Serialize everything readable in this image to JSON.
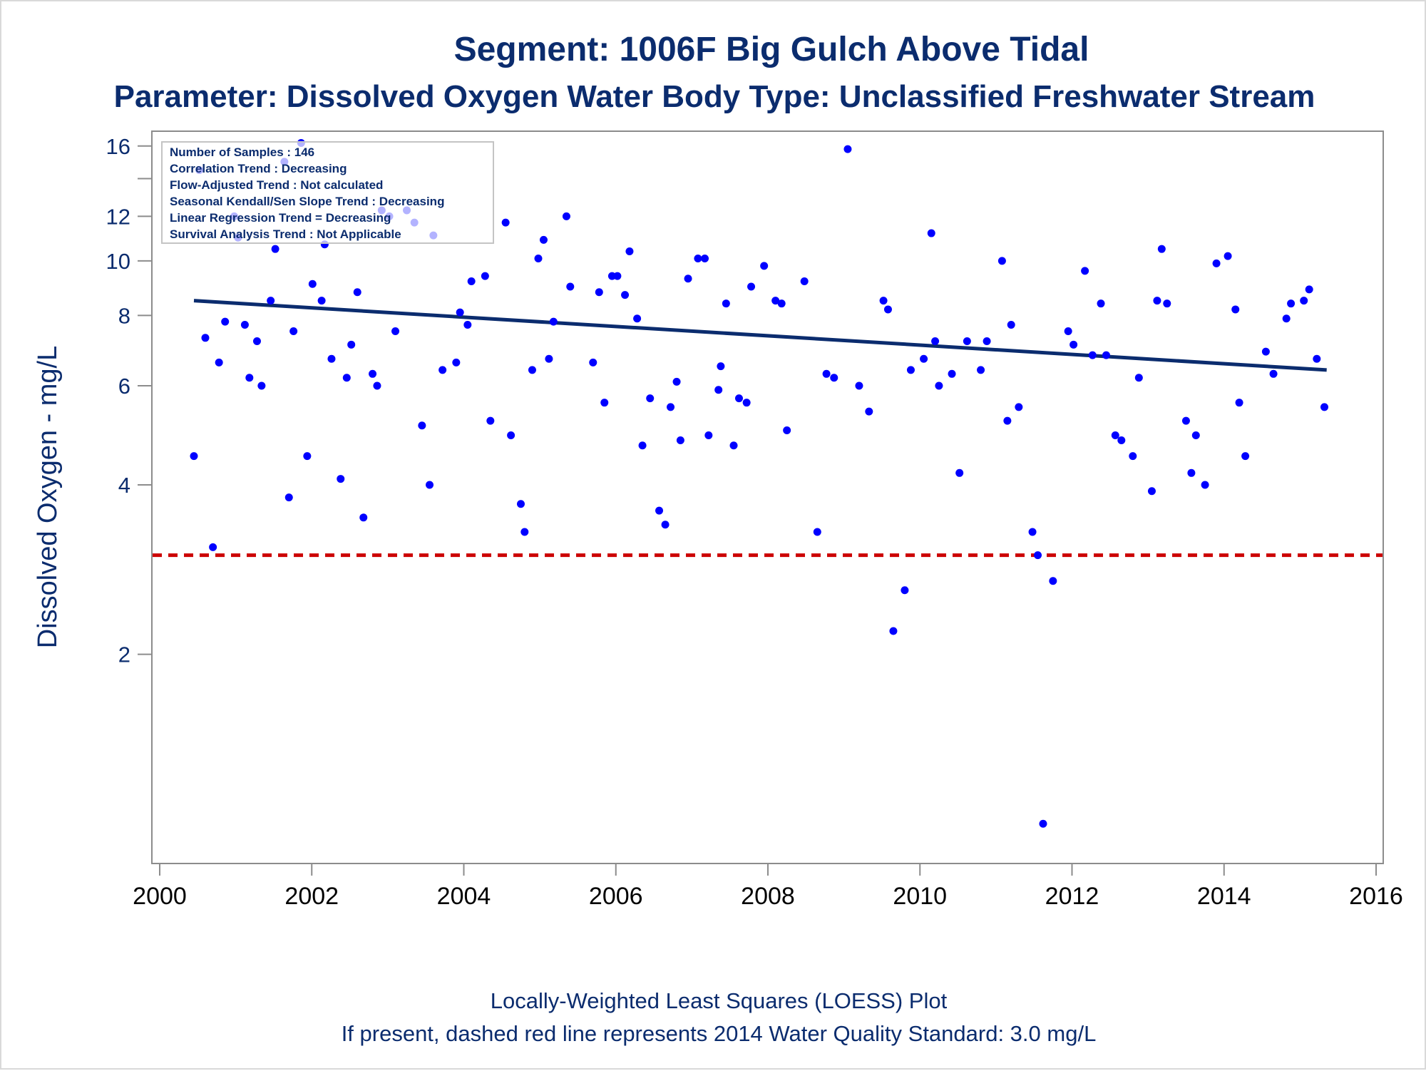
{
  "title": "Segment: 1006F  Big Gulch Above Tidal",
  "subtitle": "Parameter: Dissolved Oxygen   Water Body Type: Unclassified Freshwater Stream",
  "footnotes": [
    "Locally-Weighted Least Squares (LOESS) Plot",
    "If present, dashed red line represents 2014 Water Quality Standard: 3.0 mg/L"
  ],
  "stats_box": [
    "Number of Samples : 146",
    "Correlation Trend : Decreasing",
    "Flow-Adjusted Trend : Not calculated",
    "Seasonal Kendall/Sen Slope Trend : Decreasing",
    "Linear Regression Trend = Decreasing",
    "Survival Analysis Trend : Not Applicable"
  ],
  "colors": {
    "title": "#0b2c6e",
    "points": "#0000ff",
    "trend_line": "#0b2c6e",
    "standard_line": "#cc0000",
    "axis": "#8c8c8c"
  },
  "chart_data": {
    "type": "scatter",
    "title": "Segment: 1006F  Big Gulch Above Tidal",
    "subtitle": "Parameter: Dissolved Oxygen   Water Body Type: Unclassified Freshwater Stream",
    "xlabel": "",
    "ylabel": "Dissolved Oxygen - mg/L",
    "y_scale": "log",
    "xlim": [
      2000,
      2016
    ],
    "ylim": [
      0.85,
      17
    ],
    "x_ticks": [
      2000,
      2002,
      2004,
      2006,
      2008,
      2010,
      2012,
      2014,
      2016
    ],
    "y_ticks": [
      2,
      4,
      6,
      8,
      10,
      12,
      16
    ],
    "legend": "stats box top-left",
    "grid": false,
    "standard_line": 3.0,
    "trend_line": {
      "x": [
        2000.45,
        2015.35
      ],
      "y": [
        8.5,
        6.4
      ]
    },
    "series": [
      {
        "x": [
          2000.45,
          2000.52,
          2000.6,
          2000.7,
          2000.78,
          2000.86,
          2000.98,
          2001.03,
          2001.12,
          2001.18,
          2001.28,
          2001.34,
          2001.46,
          2001.52,
          2001.64,
          2001.7,
          2001.76,
          2001.86,
          2001.94,
          2002.01,
          2002.13,
          2002.17,
          2002.26,
          2002.38,
          2002.46,
          2002.52,
          2002.6,
          2002.68,
          2002.8,
          2002.86,
          2002.92,
          2003.02,
          2003.1,
          2003.25,
          2003.35,
          2003.45,
          2003.55,
          2003.6,
          2003.72,
          2003.9,
          2003.95,
          2004.05,
          2004.1,
          2004.28,
          2004.35,
          2004.55,
          2004.62,
          2004.75,
          2004.8,
          2004.9,
          2004.98,
          2005.05,
          2005.12,
          2005.18,
          2005.35,
          2005.4,
          2005.7,
          2005.78,
          2005.85,
          2005.95,
          2006.02,
          2006.12,
          2006.18,
          2006.28,
          2006.35,
          2006.45,
          2006.57,
          2006.65,
          2006.72,
          2006.8,
          2006.85,
          2006.95,
          2007.08,
          2007.17,
          2007.22,
          2007.35,
          2007.38,
          2007.45,
          2007.55,
          2007.62,
          2007.72,
          2007.78,
          2007.95,
          2008.1,
          2008.18,
          2008.25,
          2008.48,
          2008.65,
          2008.77,
          2008.87,
          2009.05,
          2009.2,
          2009.33,
          2009.52,
          2009.58,
          2009.65,
          2009.8,
          2009.88,
          2010.05,
          2010.15,
          2010.2,
          2010.25,
          2010.42,
          2010.52,
          2010.62,
          2010.8,
          2010.88,
          2011.08,
          2011.15,
          2011.2,
          2011.3,
          2011.48,
          2011.55,
          2011.62,
          2011.75,
          2011.95,
          2012.02,
          2012.17,
          2012.27,
          2012.38,
          2012.45,
          2012.57,
          2012.65,
          2012.8,
          2012.88,
          2013.05,
          2013.12,
          2013.18,
          2013.25,
          2013.5,
          2013.57,
          2013.63,
          2013.75,
          2013.9,
          2014.05,
          2014.15,
          2014.2,
          2014.28,
          2014.55,
          2014.65,
          2014.82,
          2014.88,
          2015.05,
          2015.12,
          2015.22,
          2015.32
        ],
        "y": [
          4.5,
          14.5,
          7.3,
          3.1,
          6.6,
          7.8,
          12,
          11,
          7.7,
          6.2,
          7.2,
          6.0,
          8.5,
          10.5,
          15,
          3.8,
          7.5,
          16.2,
          4.5,
          9.1,
          8.5,
          10.7,
          6.7,
          4.1,
          6.2,
          7.1,
          8.8,
          3.5,
          6.3,
          6.0,
          12.3,
          12,
          7.5,
          12.3,
          11.7,
          5.1,
          4.0,
          11.1,
          6.4,
          6.6,
          8.1,
          7.7,
          9.2,
          9.4,
          5.2,
          11.7,
          4.9,
          3.7,
          3.3,
          6.4,
          10.1,
          10.9,
          6.7,
          7.8,
          12,
          9,
          6.6,
          8.8,
          5.6,
          9.4,
          9.4,
          8.7,
          10.4,
          7.9,
          4.7,
          5.7,
          3.6,
          3.4,
          5.5,
          6.1,
          4.8,
          9.3,
          10.1,
          10.1,
          4.9,
          5.9,
          6.5,
          8.4,
          4.7,
          5.7,
          5.6,
          9,
          9.8,
          8.5,
          8.4,
          5.0,
          9.2,
          3.3,
          6.3,
          6.2,
          15.8,
          6.0,
          5.4,
          8.5,
          8.2,
          2.2,
          2.6,
          6.4,
          6.7,
          11.2,
          7.2,
          6.0,
          6.3,
          4.2,
          7.2,
          6.4,
          7.2,
          10,
          5.2,
          7.7,
          5.5,
          3.3,
          3.0,
          1.0,
          2.7,
          7.5,
          7.1,
          9.6,
          6.8,
          8.4,
          6.8,
          4.9,
          4.8,
          4.5,
          6.2,
          3.9,
          8.5,
          10.5,
          8.4,
          5.2,
          4.2,
          4.9,
          4.0,
          9.9,
          10.2,
          8.2,
          5.6,
          4.5,
          6.9,
          6.3,
          7.9,
          8.4,
          8.5,
          8.9,
          6.7,
          5.5
        ]
      }
    ]
  }
}
